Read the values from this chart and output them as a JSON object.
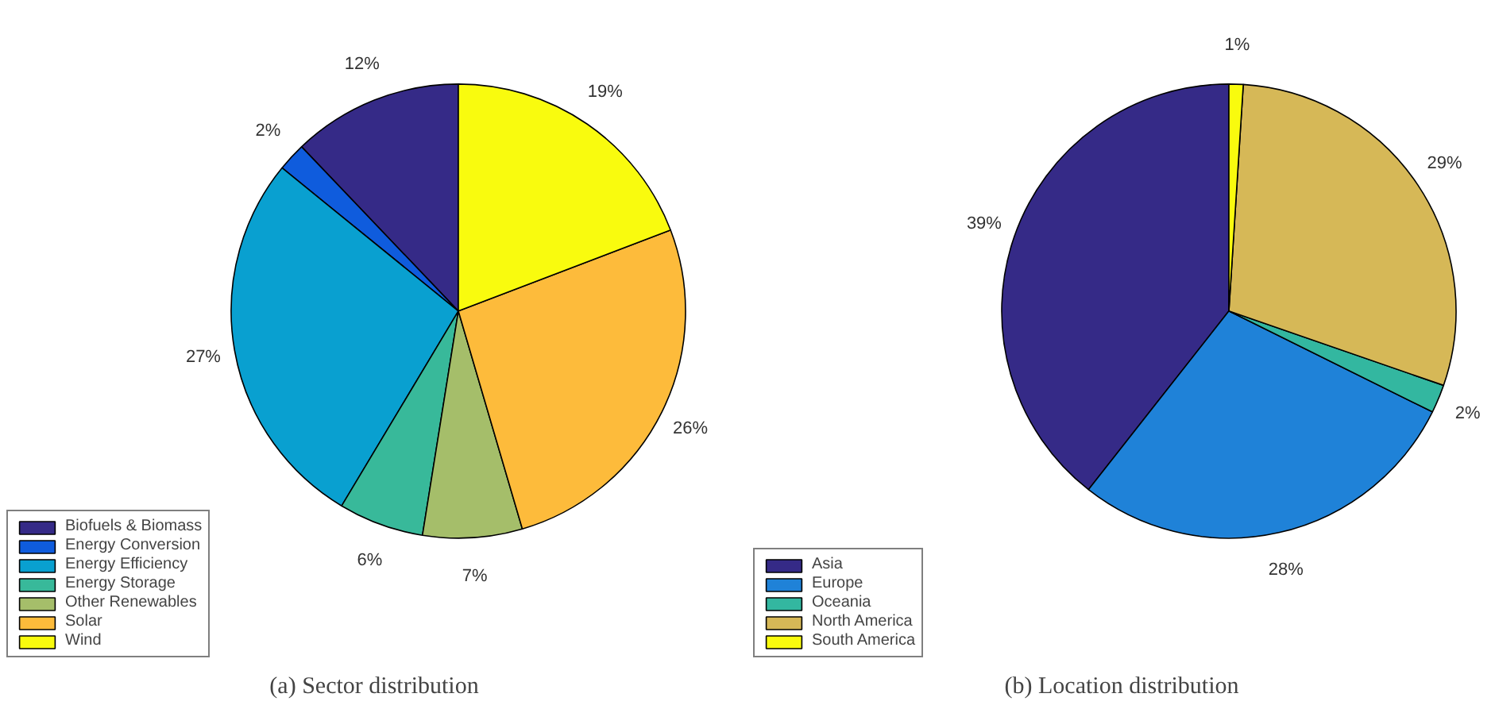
{
  "chart_data": [
    {
      "type": "pie",
      "title": "(a) Sector distribution",
      "categories": [
        "Biofuels & Biomass",
        "Energy Conversion",
        "Energy Efficiency",
        "Energy Storage",
        "Other Renewables",
        "Solar",
        "Wind"
      ],
      "values": [
        12,
        2,
        27,
        6,
        7,
        26,
        19
      ],
      "value_labels": [
        "12%",
        "2%",
        "27%",
        "6%",
        "7%",
        "26%",
        "19%"
      ],
      "colors": [
        "#352a87",
        "#0f5cdd",
        "#09a0d0",
        "#38b99a",
        "#a5be6a",
        "#fdbb3b",
        "#f9fb0e"
      ],
      "legend": "bottom left"
    },
    {
      "type": "pie",
      "title": "(b) Location distribution",
      "categories": [
        "Asia",
        "Europe",
        "Oceania",
        "North America",
        "South America"
      ],
      "values": [
        39,
        28,
        2,
        29,
        1
      ],
      "value_labels": [
        "39%",
        "28%",
        "2%",
        "29%",
        "1%"
      ],
      "colors": [
        "#352a87",
        "#1f82d8",
        "#33b7a0",
        "#d6b857",
        "#f9fb0e"
      ],
      "legend": "bottom left"
    }
  ]
}
